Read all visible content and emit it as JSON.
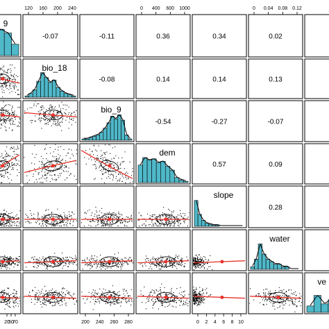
{
  "chart_data": {
    "type": "scatter",
    "title": "",
    "layout": "pairs-panel matrix",
    "variables": [
      "9",
      "bio_18",
      "bio_9",
      "dem",
      "slope",
      "water",
      "ve"
    ],
    "correlations": [
      {
        "row": 0,
        "col": 1,
        "value": "-0.07"
      },
      {
        "row": 0,
        "col": 2,
        "value": "-0.11"
      },
      {
        "row": 0,
        "col": 3,
        "value": "0.36"
      },
      {
        "row": 0,
        "col": 4,
        "value": "0.34"
      },
      {
        "row": 0,
        "col": 5,
        "value": "0.02"
      },
      {
        "row": 1,
        "col": 2,
        "value": "-0.08"
      },
      {
        "row": 1,
        "col": 3,
        "value": "0.14"
      },
      {
        "row": 1,
        "col": 4,
        "value": "0.14"
      },
      {
        "row": 1,
        "col": 5,
        "value": "0.13"
      },
      {
        "row": 2,
        "col": 3,
        "value": "-0.54"
      },
      {
        "row": 2,
        "col": 4,
        "value": "-0.27"
      },
      {
        "row": 2,
        "col": 5,
        "value": "-0.07"
      },
      {
        "row": 3,
        "col": 4,
        "value": "0.57"
      },
      {
        "row": 3,
        "col": 5,
        "value": "0.09"
      },
      {
        "row": 4,
        "col": 5,
        "value": "0.28"
      }
    ],
    "top_axis_ticks": [
      {
        "col": 1,
        "labels": [
          "120",
          "160",
          "200",
          "240"
        ]
      },
      {
        "col": 3,
        "labels": [
          "0",
          "400",
          "600",
          "1000"
        ]
      },
      {
        "col": 5,
        "labels": [
          "0",
          "0.04",
          "0.08",
          "0.12"
        ]
      }
    ],
    "bottom_axis_ticks": [
      {
        "col": 0,
        "labels": [
          "20",
          "50",
          "70"
        ]
      },
      {
        "col": 2,
        "labels": [
          "200",
          "240",
          "260",
          "280"
        ]
      },
      {
        "col": 4,
        "labels": [
          "0",
          "2",
          "4",
          "6",
          "8",
          "10"
        ]
      }
    ],
    "histograms": [
      {
        "col": 0,
        "values": [
          2,
          4,
          7,
          6,
          3
        ]
      },
      {
        "col": 1,
        "values": [
          1,
          3,
          6,
          13,
          20,
          16,
          12,
          14,
          8,
          5,
          3,
          2,
          1
        ]
      },
      {
        "col": 2,
        "values": [
          1,
          1,
          2,
          3,
          4,
          6,
          9,
          13,
          18,
          16,
          19,
          15,
          4,
          1
        ]
      },
      {
        "col": 3,
        "values": [
          14,
          20,
          18,
          19,
          16,
          17,
          13,
          10,
          4,
          2,
          1
        ]
      },
      {
        "col": 4,
        "values": [
          26,
          12,
          6,
          3,
          2,
          1,
          1,
          0,
          0,
          0,
          0,
          0,
          0,
          0
        ]
      },
      {
        "col": 5,
        "values": [
          1,
          4,
          10,
          6,
          4,
          3,
          2,
          2,
          1,
          1,
          0,
          0,
          0
        ]
      },
      {
        "col": 6,
        "values": [
          3,
          8,
          4,
          6,
          12,
          8,
          5
        ]
      }
    ],
    "colors": {
      "histogram_fill": "#4fb8c9",
      "scatter_point": "#000000",
      "smooth_line": "#e8322a",
      "ellipse": "#000000",
      "density_line": "#000000"
    }
  }
}
